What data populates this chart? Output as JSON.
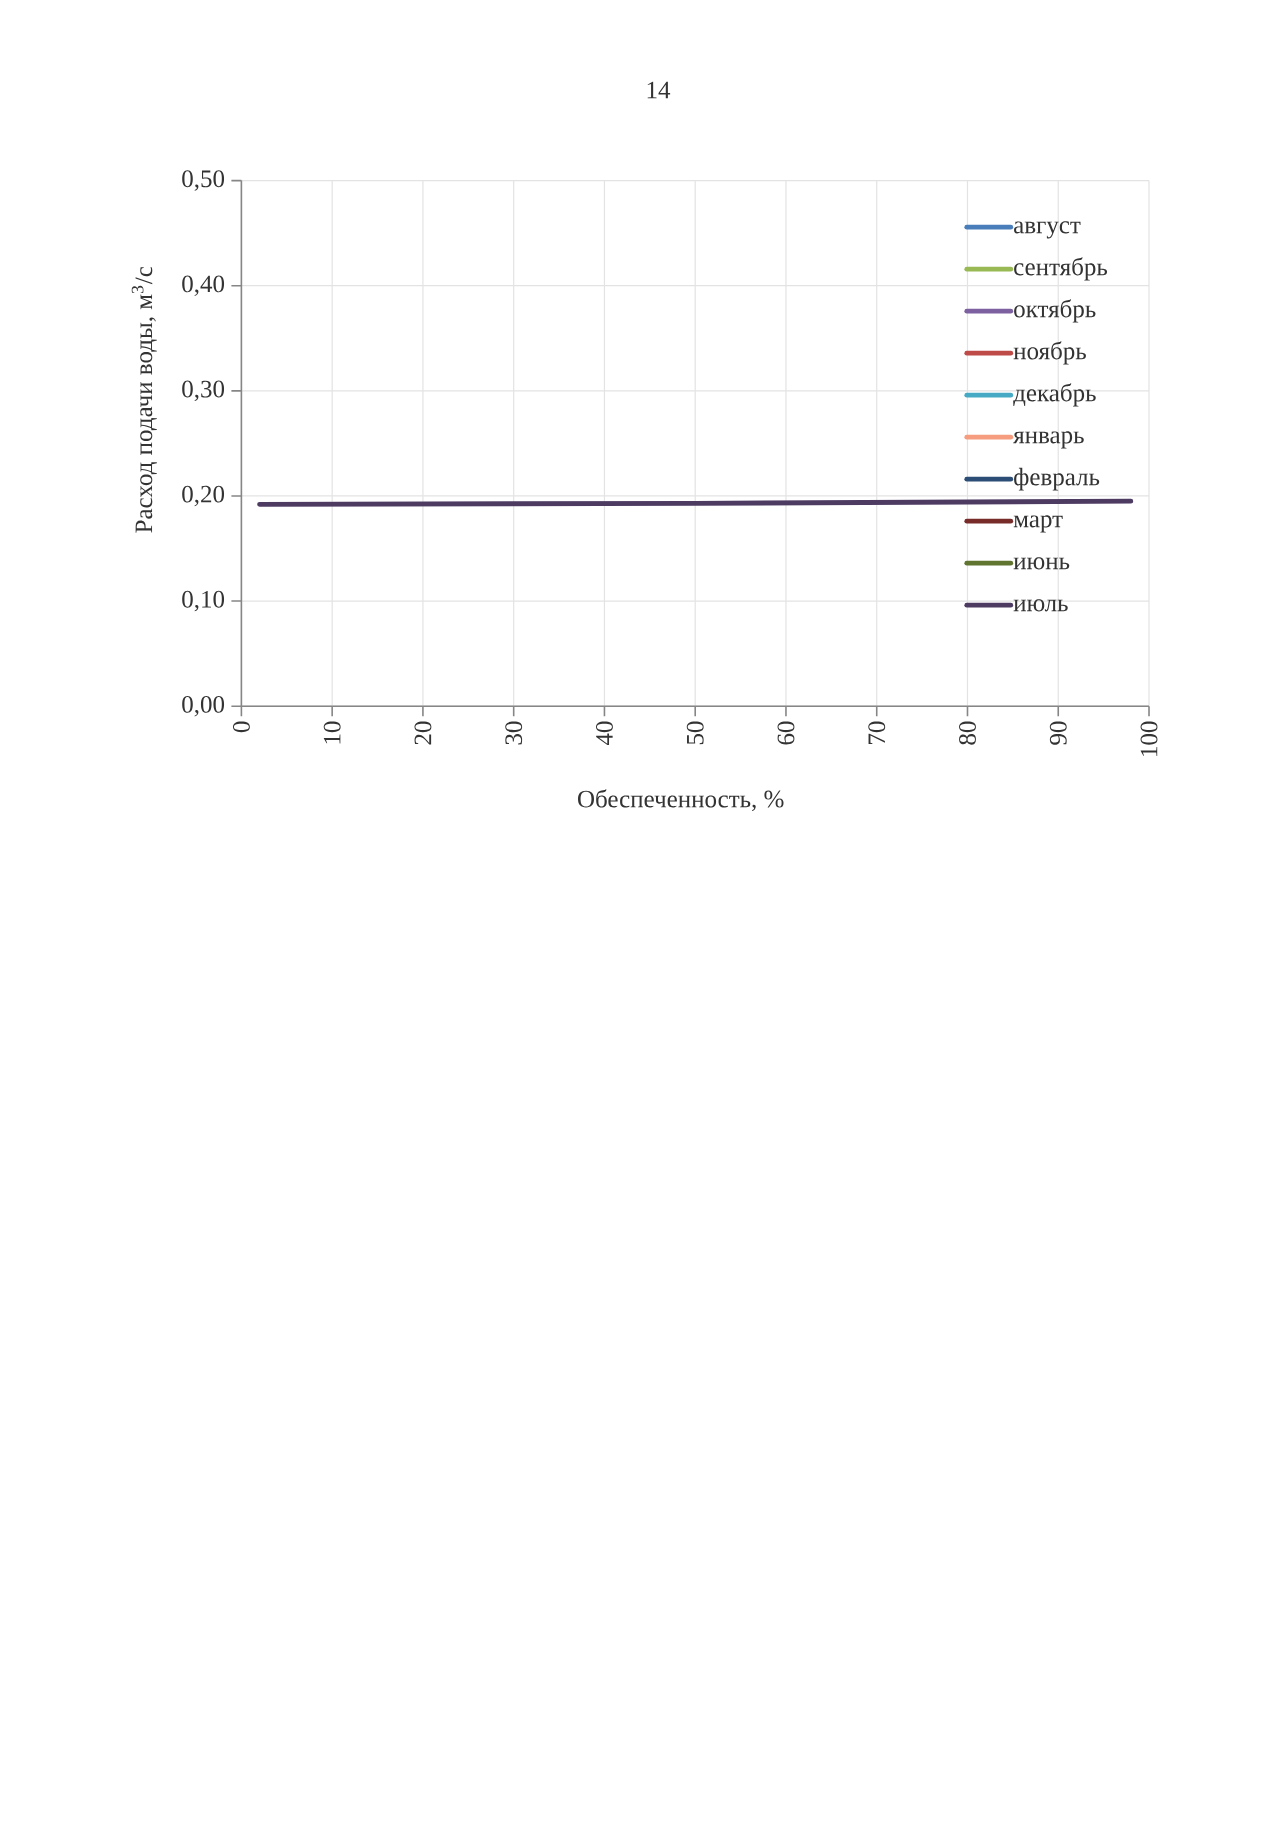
{
  "chart_data": {
    "type": "line",
    "xlabel": "Обеспеченность, %",
    "ylabel": "Расход подачи воды, м$^{3}$/с",
    "annotations": [
      "14"
    ],
    "x": [
      2,
      50,
      98
    ],
    "xlim": [
      0,
      100
    ],
    "xticks": [
      0,
      10,
      20,
      30,
      40,
      50,
      60,
      70,
      80,
      90,
      100
    ],
    "ylim": [
      0,
      0.5
    ],
    "yticks": [
      {
        "value": 0,
        "label": "0,00"
      },
      {
        "value": 0.1,
        "label": "0,10"
      },
      {
        "value": 0.2,
        "label": "0,20"
      },
      {
        "value": 0.3,
        "label": "0,30"
      },
      {
        "value": 0.4,
        "label": "0,40"
      },
      {
        "value": 0.5,
        "label": "0,50"
      }
    ],
    "grid": true,
    "legend": "top right",
    "series": [
      {
        "name": "август",
        "color": "#4a7ebb",
        "values": [
          null,
          null,
          null
        ]
      },
      {
        "name": "сентябрь",
        "color": "#98b954",
        "values": [
          null,
          null,
          null
        ]
      },
      {
        "name": "октябрь",
        "color": "#7d60a0",
        "values": [
          null,
          null,
          null
        ]
      },
      {
        "name": "ноябрь",
        "color": "#be4b48",
        "values": [
          null,
          null,
          null
        ]
      },
      {
        "name": "декабрь",
        "color": "#46aac5",
        "values": [
          null,
          null,
          null
        ]
      },
      {
        "name": "январь",
        "color": "#f59d7e",
        "values": [
          null,
          null,
          null
        ]
      },
      {
        "name": "февраль",
        "color": "#2c4d75",
        "values": [
          null,
          null,
          null
        ]
      },
      {
        "name": "март",
        "color": "#772c2a",
        "values": [
          null,
          null,
          null
        ]
      },
      {
        "name": "июнь",
        "color": "#5f7530",
        "values": [
          null,
          null,
          null
        ]
      },
      {
        "name": "июль",
        "color": "#4d3b62",
        "values": [
          0.192,
          0.193,
          0.195
        ]
      }
    ]
  }
}
